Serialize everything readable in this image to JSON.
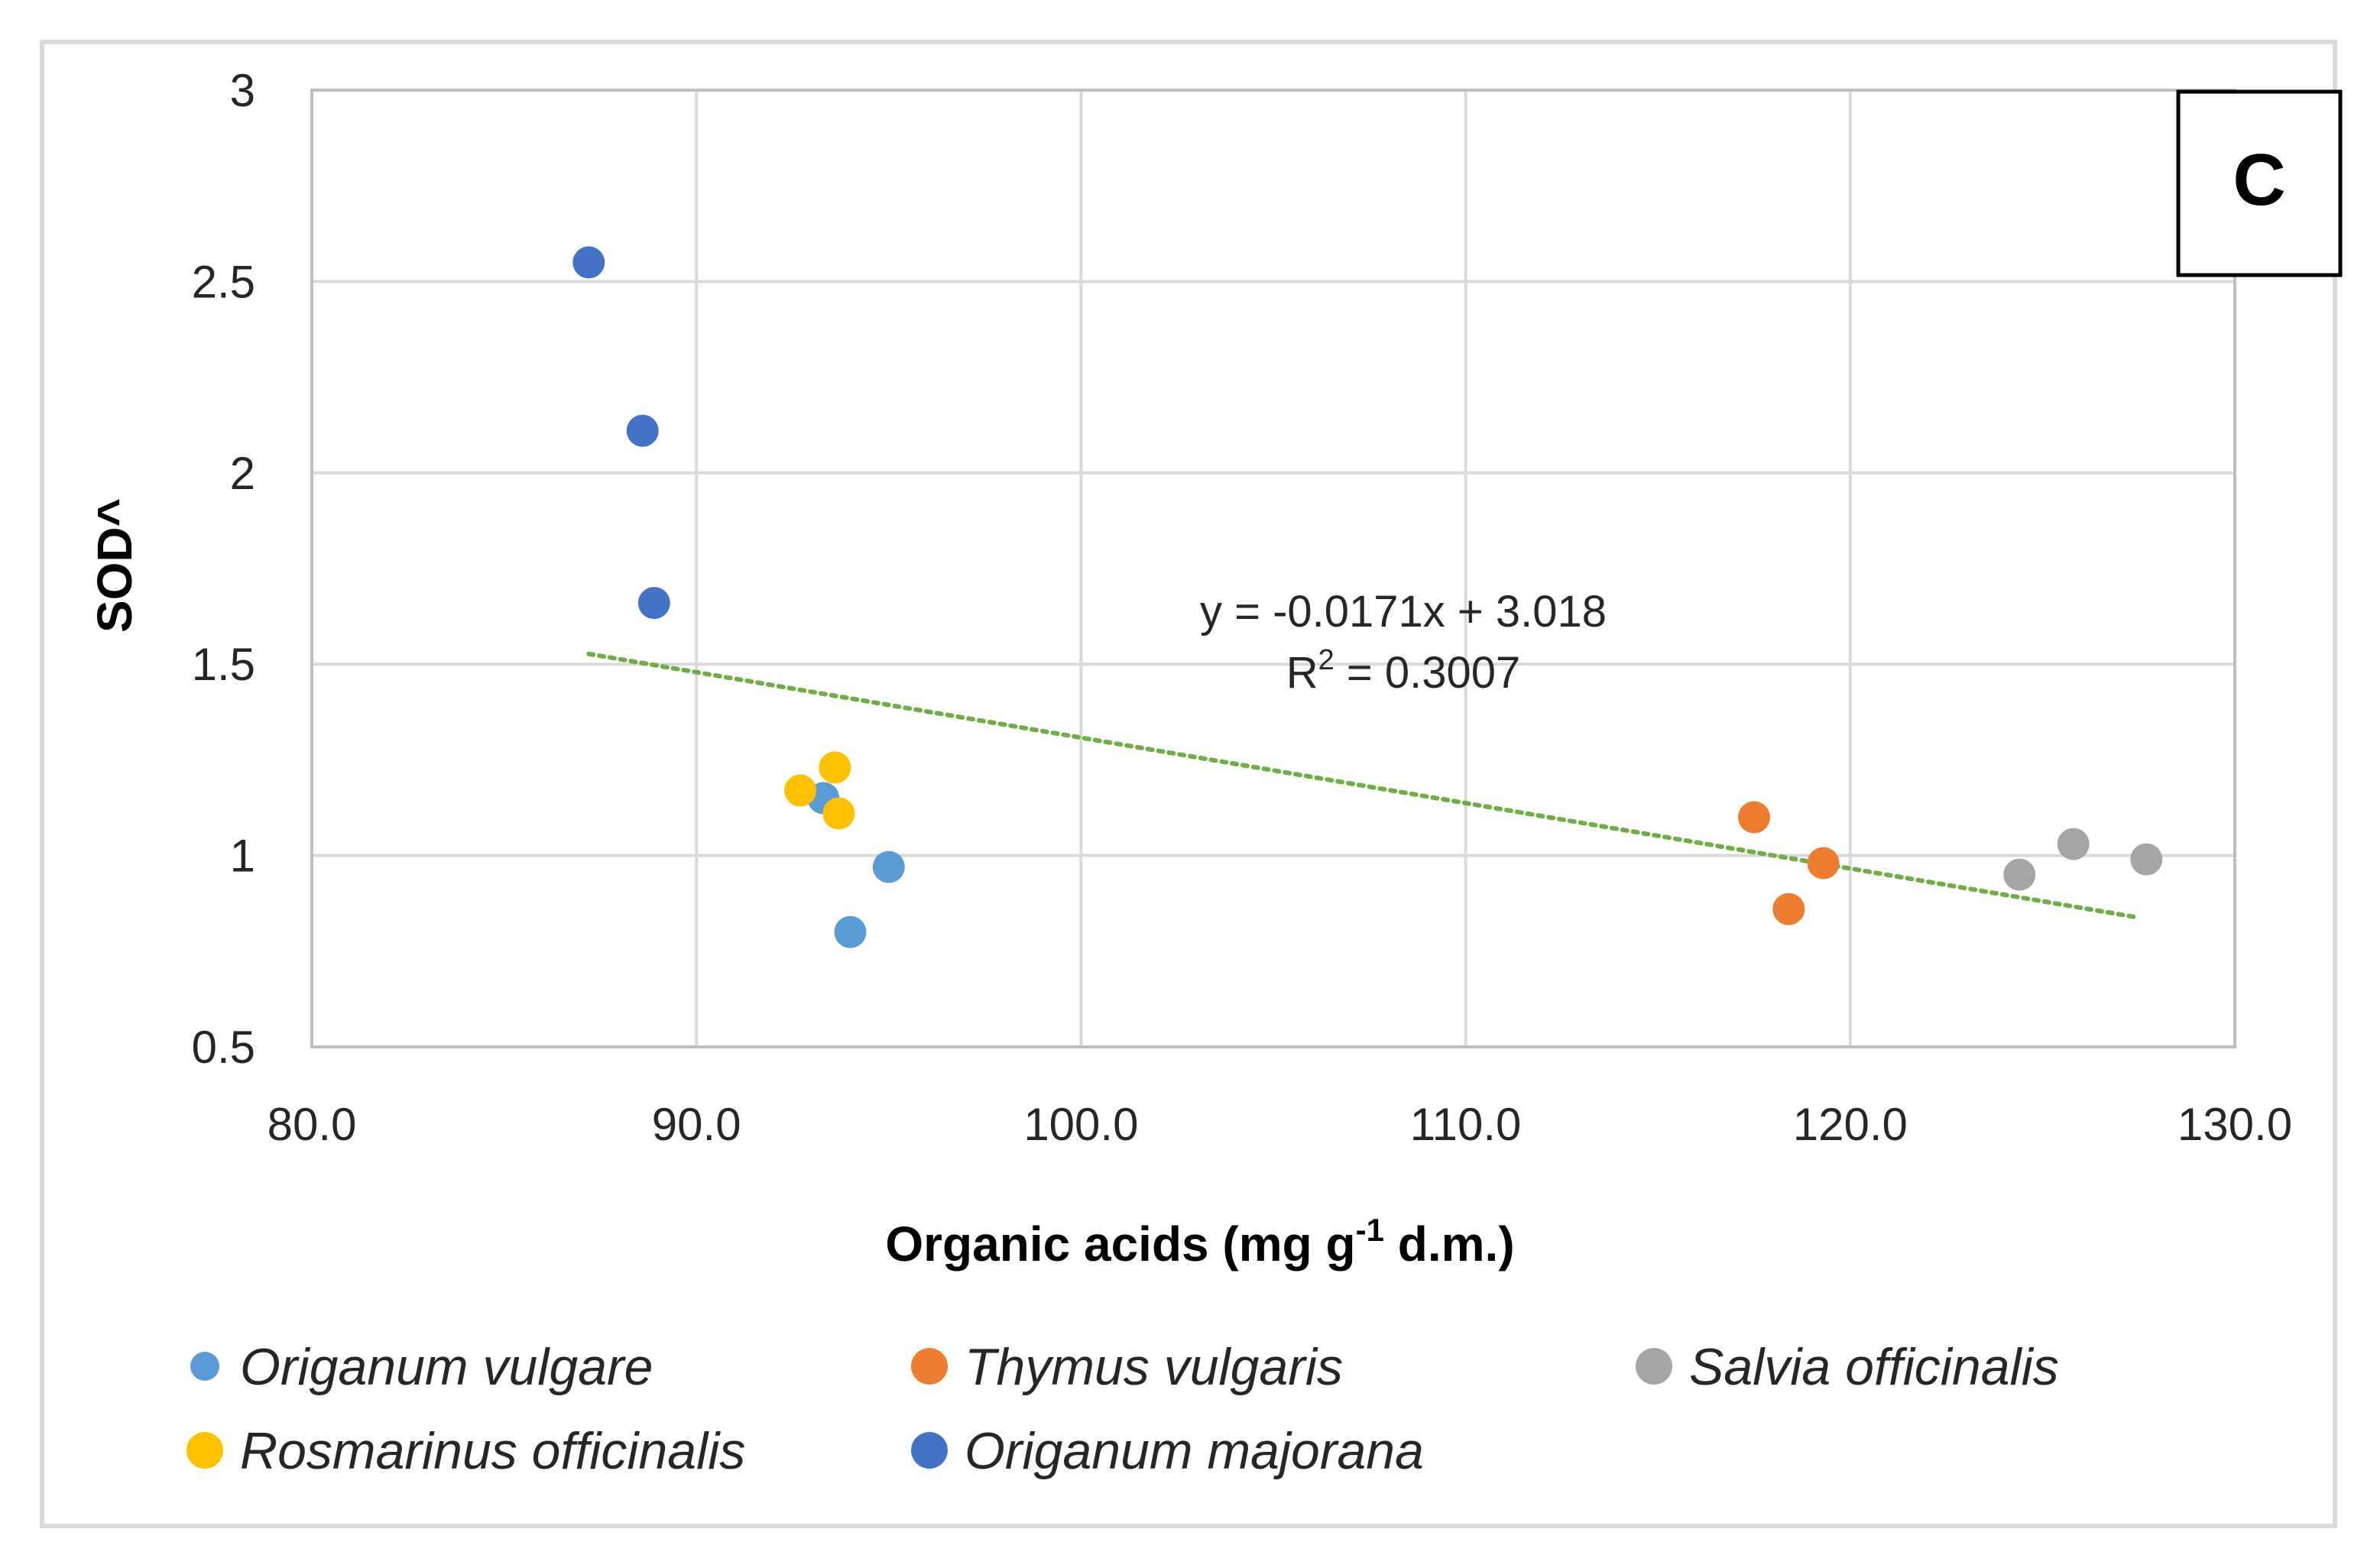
{
  "chart_data": {
    "type": "scatter",
    "panel_label": "C",
    "xlabel": "Organic acids (mg g",
    "xlabel_sup": "-1",
    "xlabel_tail": " d.m.)",
    "ylabel": "SOD^",
    "xlim": [
      80,
      130
    ],
    "ylim": [
      0.5,
      3
    ],
    "x_ticks": [
      80,
      90,
      100,
      110,
      120,
      130
    ],
    "x_tick_labels": [
      "80.0",
      "90.0",
      "100.0",
      "110.0",
      "120.0",
      "130.0"
    ],
    "y_ticks": [
      0.5,
      1,
      1.5,
      2,
      2.5,
      3
    ],
    "y_tick_labels": [
      "0.5",
      "1",
      "1.5",
      "2",
      "2.5",
      "3"
    ],
    "grid": true,
    "series": [
      {
        "name": "Origanum vulgare",
        "color": "#5b9bd5",
        "points": [
          [
            93.3,
            1.15
          ],
          [
            95.0,
            0.97
          ],
          [
            94.0,
            0.8
          ]
        ]
      },
      {
        "name": "Thymus vulgaris",
        "color": "#ed7d31",
        "points": [
          [
            117.5,
            1.1
          ],
          [
            119.3,
            0.98
          ],
          [
            118.4,
            0.86
          ]
        ]
      },
      {
        "name": "Salvia officinalis",
        "color": "#a5a5a5",
        "points": [
          [
            124.4,
            0.95
          ],
          [
            125.8,
            1.03
          ],
          [
            127.7,
            0.99
          ]
        ]
      },
      {
        "name": "Rosmarinus officinalis",
        "color": "#ffc000",
        "points": [
          [
            92.7,
            1.17
          ],
          [
            93.6,
            1.23
          ],
          [
            93.7,
            1.11
          ]
        ]
      },
      {
        "name": "Origanum majorana",
        "color": "#4472c4",
        "points": [
          [
            87.2,
            2.55
          ],
          [
            88.6,
            2.11
          ],
          [
            88.9,
            1.66
          ]
        ]
      }
    ],
    "trendline": {
      "type": "linear",
      "slope": -0.0171,
      "intercept": 3.018,
      "x_range": [
        87.2,
        127.4
      ],
      "color": "#70ad47",
      "style": "dotted",
      "equation": "y = -0.0171x + 3.018",
      "r2_label": "R",
      "r2_sup": "2",
      "r2_value": " = 0.3007"
    },
    "legend": {
      "position": "bottom",
      "entries": [
        "Origanum vulgare",
        "Thymus vulgaris",
        "Salvia officinalis",
        "Rosmarinus officinalis",
        "Origanum majorana"
      ]
    }
  }
}
